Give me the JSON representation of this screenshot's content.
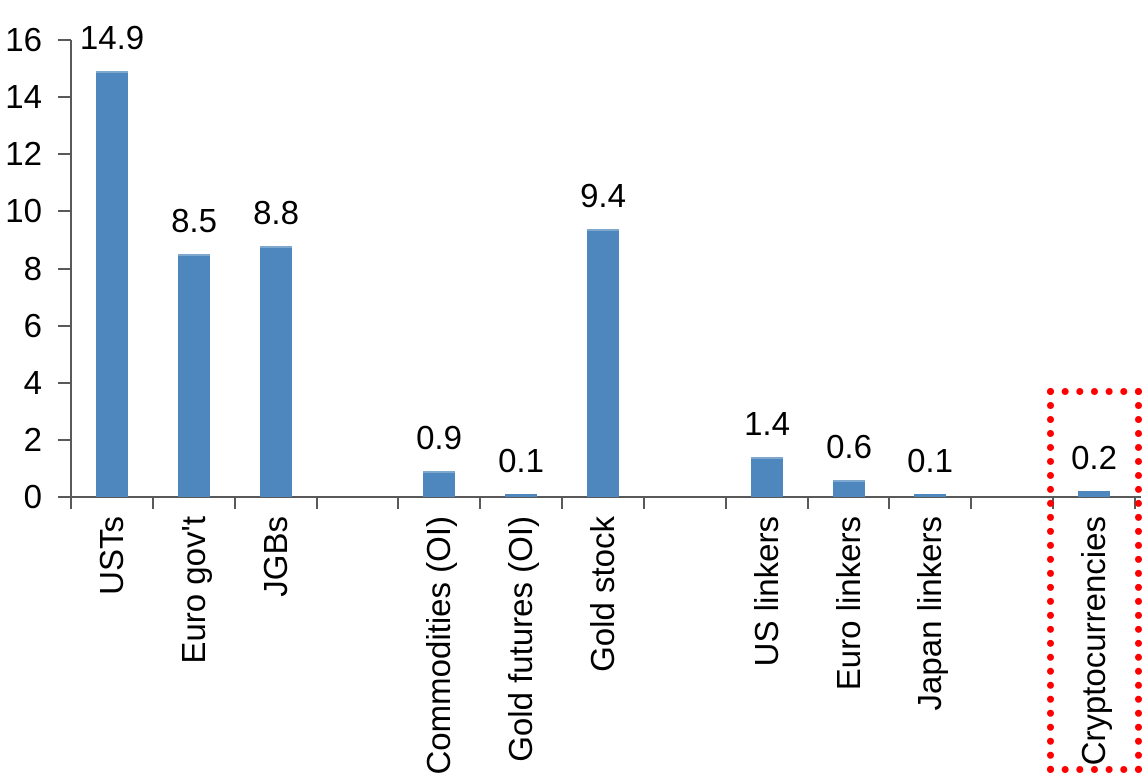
{
  "chart_data": {
    "type": "bar",
    "title": "",
    "categories": [
      "USTs",
      "Euro gov't",
      "JGBs",
      "",
      "Commodities (OI)",
      "Gold futures (OI)",
      "Gold stock",
      "",
      "US linkers",
      "Euro linkers",
      "Japan linkers",
      "",
      "Cryptocurrencies"
    ],
    "values": [
      14.9,
      8.5,
      8.8,
      null,
      0.9,
      0.1,
      9.4,
      null,
      1.4,
      0.6,
      0.1,
      null,
      0.2
    ],
    "value_labels": [
      "14.9",
      "8.5",
      "8.8",
      "",
      "0.9",
      "0.1",
      "9.4",
      "",
      "1.4",
      "0.6",
      "0.1",
      "",
      "0.2"
    ],
    "y_axis": {
      "min": 0,
      "max": 16,
      "tick_step": 2,
      "ticks": [
        0,
        2,
        4,
        6,
        8,
        10,
        12,
        14,
        16
      ]
    },
    "x_axis": {
      "labels_rotated_90_ccw": true
    },
    "grid": false,
    "legend": null,
    "colors": {
      "bar": "#4E87BD",
      "axis": "#595959",
      "text": "#000000",
      "highlight": "#FF0000"
    },
    "annotations": [
      {
        "type": "dotted_box",
        "category_index": 12,
        "category": "Cryptocurrencies",
        "color": "#FF0000"
      }
    ]
  }
}
